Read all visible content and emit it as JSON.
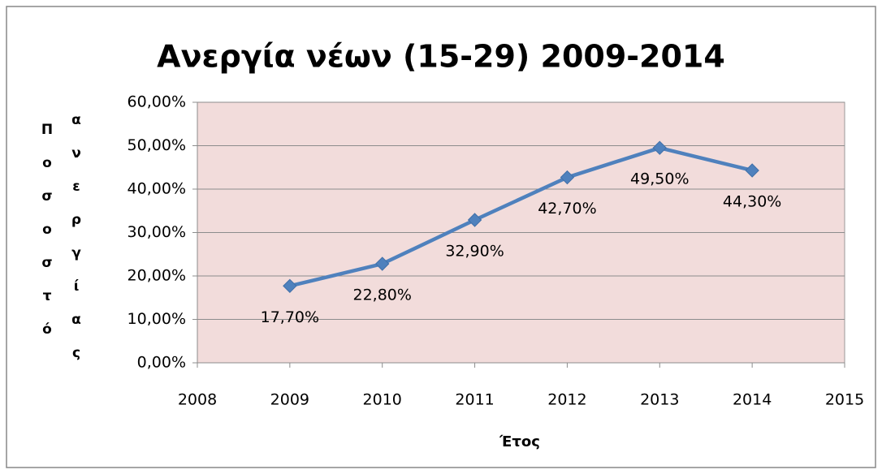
{
  "chart_data": {
    "type": "line",
    "title": "Ανεργία νέων (15-29) 2009-2014",
    "x_label": "Έτος",
    "y_label": "Ποσοστό ανεργίας",
    "series": [
      {
        "name": "Ανεργία νέων",
        "color": "#4f81bd",
        "x": [
          2009,
          2010,
          2011,
          2012,
          2013,
          2014
        ],
        "values": [
          17.7,
          22.8,
          32.9,
          42.7,
          49.5,
          44.3
        ],
        "value_labels": [
          "17,70%",
          "22,80%",
          "32,90%",
          "42,70%",
          "49,50%",
          "44,30%"
        ]
      }
    ],
    "xlim": [
      2008,
      2015
    ],
    "xticks": [
      2008,
      2009,
      2010,
      2011,
      2012,
      2013,
      2014,
      2015
    ],
    "ylim": [
      0,
      60
    ],
    "yticks": [
      {
        "value": 0,
        "label": "0,00%"
      },
      {
        "value": 10,
        "label": "10,00%"
      },
      {
        "value": 20,
        "label": "20,00%"
      },
      {
        "value": 30,
        "label": "30,00%"
      },
      {
        "value": 40,
        "label": "40,00%"
      },
      {
        "value": 50,
        "label": "50,00%"
      },
      {
        "value": 60,
        "label": "60,00%"
      }
    ],
    "grid": true,
    "plot_background": "#f2dcdb"
  }
}
